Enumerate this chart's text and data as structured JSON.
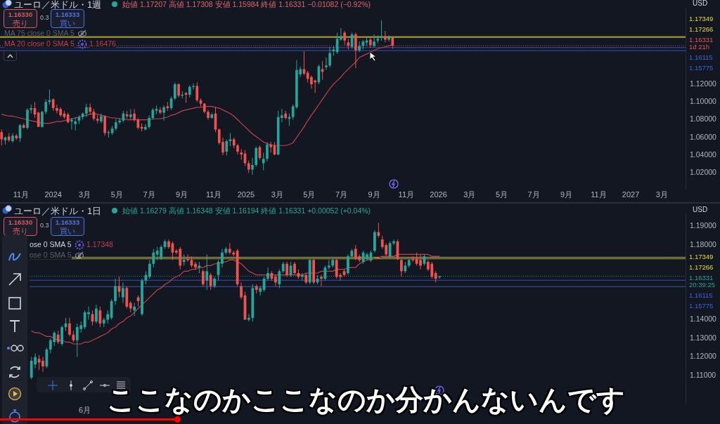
{
  "chart_data": [
    {
      "type": "candlestick",
      "title": "ユーロ／米ドル・1週",
      "subtitle": "始値 1.17207 高値 1.17308 安値 1.15984 終値 1.16331 −0.01082 (−0.92%)",
      "x": [
        "2023-09-25",
        "2023-10-02",
        "2023-10-09",
        "2023-10-16",
        "2023-10-23",
        "2023-10-30",
        "2023-11-06",
        "2023-11-13",
        "2023-11-20",
        "2023-11-27",
        "2023-12-04",
        "2023-12-11",
        "2023-12-18",
        "2023-12-25",
        "2024-01-01",
        "2024-01-08",
        "2024-01-15",
        "2024-01-22",
        "2024-01-29",
        "2024-02-05",
        "2024-02-12",
        "2024-02-19",
        "2024-02-26",
        "2024-03-04",
        "2024-03-11",
        "2024-03-18",
        "2024-03-25",
        "2024-04-01",
        "2024-04-08",
        "2024-04-15",
        "2024-04-22",
        "2024-04-29",
        "2024-05-06",
        "2024-05-13",
        "2024-05-20",
        "2024-05-27",
        "2024-06-03",
        "2024-06-10",
        "2024-06-17",
        "2024-06-24",
        "2024-07-01",
        "2024-07-08",
        "2024-07-15",
        "2024-07-22",
        "2024-07-29",
        "2024-08-05",
        "2024-08-12",
        "2024-08-19",
        "2024-08-26",
        "2024-09-02",
        "2024-09-09",
        "2024-09-16",
        "2024-09-23",
        "2024-09-30",
        "2024-10-07",
        "2024-10-14",
        "2024-10-21",
        "2024-10-28",
        "2024-11-04",
        "2024-11-11",
        "2024-11-18",
        "2024-11-25",
        "2024-12-02",
        "2024-12-09",
        "2024-12-16",
        "2024-12-23",
        "2024-12-30",
        "2025-01-06",
        "2025-01-13",
        "2025-01-20",
        "2025-01-27",
        "2025-02-03",
        "2025-02-10",
        "2025-02-17",
        "2025-02-24",
        "2025-03-03",
        "2025-03-10",
        "2025-03-17",
        "2025-03-24",
        "2025-03-31",
        "2025-04-07",
        "2025-04-14",
        "2025-04-21",
        "2025-04-28",
        "2025-05-05",
        "2025-05-12",
        "2025-05-19",
        "2025-05-26",
        "2025-06-02",
        "2025-06-09",
        "2025-06-16",
        "2025-06-23",
        "2025-06-30",
        "2025-07-07",
        "2025-07-14",
        "2025-07-21",
        "2025-07-28",
        "2025-08-04",
        "2025-08-11",
        "2025-08-18",
        "2025-08-25",
        "2025-09-01",
        "2025-09-08",
        "2025-09-15",
        "2025-09-22",
        "2025-09-29",
        "2025-10-06"
      ],
      "ohlc": [
        [
          1.066,
          1.069,
          1.051,
          1.058
        ],
        [
          1.057,
          1.061,
          1.052,
          1.06
        ],
        [
          1.061,
          1.065,
          1.055,
          1.057
        ],
        [
          1.056,
          1.065,
          1.054,
          1.062
        ],
        [
          1.062,
          1.064,
          1.057,
          1.059
        ],
        [
          1.059,
          1.075,
          1.055,
          1.074
        ],
        [
          1.074,
          1.076,
          1.07,
          1.071
        ],
        [
          1.071,
          1.093,
          1.069,
          1.091
        ],
        [
          1.091,
          1.097,
          1.087,
          1.093
        ],
        [
          1.093,
          1.1,
          1.082,
          1.086
        ],
        [
          1.088,
          1.089,
          1.072,
          1.072
        ],
        [
          1.072,
          1.09,
          1.071,
          1.089
        ],
        [
          1.089,
          1.103,
          1.086,
          1.1
        ],
        [
          1.1,
          1.114,
          1.097,
          1.102
        ],
        [
          1.103,
          1.104,
          1.09,
          1.093
        ],
        [
          1.093,
          1.097,
          1.087,
          1.09
        ],
        [
          1.092,
          1.094,
          1.083,
          1.085
        ],
        [
          1.087,
          1.09,
          1.081,
          1.083
        ],
        [
          1.086,
          1.088,
          1.076,
          1.077
        ],
        [
          1.078,
          1.082,
          1.069,
          1.08
        ],
        [
          1.075,
          1.083,
          1.068,
          1.078
        ],
        [
          1.079,
          1.085,
          1.075,
          1.083
        ],
        [
          1.083,
          1.088,
          1.08,
          1.087
        ],
        [
          1.087,
          1.098,
          1.083,
          1.094
        ],
        [
          1.094,
          1.098,
          1.086,
          1.089
        ],
        [
          1.089,
          1.092,
          1.079,
          1.081
        ],
        [
          1.081,
          1.085,
          1.076,
          1.079
        ],
        [
          1.078,
          1.087,
          1.076,
          1.084
        ],
        [
          1.084,
          1.085,
          1.062,
          1.065
        ],
        [
          1.065,
          1.068,
          1.06,
          1.066
        ],
        [
          1.065,
          1.073,
          1.063,
          1.07
        ],
        [
          1.07,
          1.081,
          1.068,
          1.077
        ],
        [
          1.077,
          1.082,
          1.075,
          1.079
        ],
        [
          1.079,
          1.09,
          1.077,
          1.087
        ],
        [
          1.086,
          1.09,
          1.081,
          1.084
        ],
        [
          1.083,
          1.092,
          1.08,
          1.086
        ],
        [
          1.087,
          1.092,
          1.078,
          1.08
        ],
        [
          1.08,
          1.082,
          1.069,
          1.071
        ],
        [
          1.072,
          1.076,
          1.067,
          1.07
        ],
        [
          1.069,
          1.075,
          1.068,
          1.072
        ],
        [
          1.072,
          1.085,
          1.07,
          1.082
        ],
        [
          1.082,
          1.093,
          1.08,
          1.091
        ],
        [
          1.09,
          1.096,
          1.086,
          1.092
        ],
        [
          1.091,
          1.094,
          1.086,
          1.088
        ],
        [
          1.088,
          1.096,
          1.079,
          1.094
        ],
        [
          1.095,
          1.1,
          1.09,
          1.093
        ],
        [
          1.093,
          1.106,
          1.091,
          1.104
        ],
        [
          1.104,
          1.122,
          1.102,
          1.12
        ],
        [
          1.12,
          1.121,
          1.105,
          1.107
        ],
        [
          1.107,
          1.112,
          1.104,
          1.108
        ],
        [
          1.11,
          1.111,
          1.099,
          1.108
        ],
        [
          1.108,
          1.119,
          1.105,
          1.117
        ],
        [
          1.117,
          1.121,
          1.114,
          1.118
        ],
        [
          1.118,
          1.122,
          1.1,
          1.102
        ],
        [
          1.102,
          1.104,
          1.095,
          1.098
        ],
        [
          1.098,
          1.099,
          1.087,
          1.089
        ],
        [
          1.089,
          1.091,
          1.08,
          1.082
        ],
        [
          1.082,
          1.088,
          1.081,
          1.086
        ],
        [
          1.087,
          1.094,
          1.066,
          1.069
        ],
        [
          1.069,
          1.07,
          1.052,
          1.054
        ],
        [
          1.055,
          1.06,
          1.04,
          1.043
        ],
        [
          1.044,
          1.058,
          1.04,
          1.056
        ],
        [
          1.056,
          1.065,
          1.05,
          1.058
        ],
        [
          1.058,
          1.06,
          1.048,
          1.051
        ],
        [
          1.051,
          1.053,
          1.041,
          1.044
        ],
        [
          1.043,
          1.047,
          1.035,
          1.041
        ],
        [
          1.042,
          1.046,
          1.028,
          1.031
        ],
        [
          1.031,
          1.034,
          1.02,
          1.024
        ],
        [
          1.024,
          1.037,
          1.018,
          1.029
        ],
        [
          1.029,
          1.05,
          1.027,
          1.048
        ],
        [
          1.049,
          1.051,
          1.035,
          1.037
        ],
        [
          1.031,
          1.043,
          1.023,
          1.036
        ],
        [
          1.036,
          1.055,
          1.033,
          1.052
        ],
        [
          1.052,
          1.055,
          1.043,
          1.049
        ],
        [
          1.051,
          1.055,
          1.04,
          1.041
        ],
        [
          1.041,
          1.09,
          1.04,
          1.083
        ],
        [
          1.082,
          1.092,
          1.077,
          1.085
        ],
        [
          1.087,
          1.09,
          1.08,
          1.082
        ],
        [
          1.081,
          1.087,
          1.073,
          1.083
        ],
        [
          1.083,
          1.097,
          1.08,
          1.095
        ],
        [
          1.094,
          1.147,
          1.092,
          1.136
        ],
        [
          1.131,
          1.14,
          1.128,
          1.137
        ],
        [
          1.137,
          1.157,
          1.13,
          1.132
        ],
        [
          1.133,
          1.135,
          1.122,
          1.126
        ],
        [
          1.128,
          1.13,
          1.115,
          1.12
        ],
        [
          1.124,
          1.125,
          1.11,
          1.122
        ],
        [
          1.122,
          1.142,
          1.12,
          1.14
        ],
        [
          1.137,
          1.146,
          1.125,
          1.134
        ],
        [
          1.139,
          1.15,
          1.136,
          1.141
        ],
        [
          1.141,
          1.162,
          1.139,
          1.155
        ],
        [
          1.157,
          1.163,
          1.152,
          1.159
        ],
        [
          1.156,
          1.178,
          1.154,
          1.171
        ],
        [
          1.17,
          1.183,
          1.169,
          1.174
        ],
        [
          1.178,
          1.18,
          1.164,
          1.169
        ],
        [
          1.167,
          1.171,
          1.159,
          1.163
        ],
        [
          1.162,
          1.178,
          1.16,
          1.176
        ],
        [
          1.176,
          1.178,
          1.138,
          1.158
        ],
        [
          1.158,
          1.168,
          1.156,
          1.163
        ],
        [
          1.163,
          1.17,
          1.159,
          1.168
        ],
        [
          1.167,
          1.172,
          1.163,
          1.169
        ],
        [
          1.17,
          1.173,
          1.161,
          1.164
        ],
        [
          1.163,
          1.176,
          1.161,
          1.168
        ],
        [
          1.169,
          1.175,
          1.166,
          1.171
        ],
        [
          1.172,
          1.192,
          1.169,
          1.174
        ],
        [
          1.174,
          1.18,
          1.167,
          1.17
        ],
        [
          1.17,
          1.175,
          1.168,
          1.172
        ],
        [
          1.17207,
          1.17308,
          1.15984,
          1.16331
        ]
      ],
      "series": [
        {
          "type": "line",
          "name": "MA 20 close 0 SMA 5",
          "color": "#c2404c",
          "values": [
            1.086,
            1.085,
            1.084,
            1.084,
            1.083,
            1.082,
            1.081,
            1.08,
            1.079,
            1.078,
            1.077,
            1.076,
            1.076,
            1.076,
            1.077,
            1.078,
            1.078,
            1.079,
            1.08,
            1.081,
            1.082,
            1.083,
            1.084,
            1.085,
            1.086,
            1.087,
            1.086,
            1.085,
            1.084,
            1.083,
            1.082,
            1.082,
            1.081,
            1.081,
            1.08,
            1.08,
            1.08,
            1.08,
            1.08,
            1.08,
            1.08,
            1.081,
            1.081,
            1.081,
            1.082,
            1.083,
            1.085,
            1.086,
            1.088,
            1.09,
            1.091,
            1.092,
            1.093,
            1.094,
            1.094,
            1.095,
            1.095,
            1.095,
            1.094,
            1.093,
            1.091,
            1.089,
            1.087,
            1.084,
            1.08,
            1.076,
            1.072,
            1.068,
            1.064,
            1.061,
            1.058,
            1.055,
            1.053,
            1.052,
            1.051,
            1.051,
            1.051,
            1.051,
            1.052,
            1.054,
            1.06,
            1.066,
            1.072,
            1.079,
            1.085,
            1.091,
            1.097,
            1.103,
            1.109,
            1.115,
            1.12,
            1.124,
            1.128,
            1.133,
            1.137,
            1.141,
            1.145,
            1.15,
            1.152,
            1.154,
            1.156,
            1.158,
            1.16,
            1.161,
            1.162,
            1.163,
            1.165
          ]
        }
      ],
      "xlim": [
        "2023-09-22",
        "2027-04-15"
      ],
      "xticks": [
        {
          "value": "2023-11-01",
          "label": "11月"
        },
        {
          "value": "2024-01-01",
          "label": "2024"
        },
        {
          "value": "2024-03-01",
          "label": "3月"
        },
        {
          "value": "2024-05-01",
          "label": "5月"
        },
        {
          "value": "2024-07-01",
          "label": "7月"
        },
        {
          "value": "2024-09-01",
          "label": "9月"
        },
        {
          "value": "2024-11-01",
          "label": "11月"
        },
        {
          "value": "2025-01-01",
          "label": "2025"
        },
        {
          "value": "2025-03-01",
          "label": "3月"
        },
        {
          "value": "2025-05-01",
          "label": "5月"
        },
        {
          "value": "2025-07-01",
          "label": "7月"
        },
        {
          "value": "2025-09-01",
          "label": "9月"
        },
        {
          "value": "2025-11-01",
          "label": "11月"
        },
        {
          "value": "2026-01-01",
          "label": "2026"
        },
        {
          "value": "2026-03-01",
          "label": "3月"
        },
        {
          "value": "2026-05-01",
          "label": "5月"
        },
        {
          "value": "2026-07-01",
          "label": "7月"
        },
        {
          "value": "2026-09-01",
          "label": "9月"
        },
        {
          "value": "2026-11-01",
          "label": "11月"
        },
        {
          "value": "2027-01-01",
          "label": "2027"
        },
        {
          "value": "2027-03-01",
          "label": "3月"
        }
      ],
      "ylim": [
        1.003,
        1.205
      ],
      "yticks": [
        {
          "value": 1.02,
          "label": "1.02000"
        },
        {
          "value": 1.04,
          "label": "1.04000"
        },
        {
          "value": 1.06,
          "label": "1.06000"
        },
        {
          "value": 1.08,
          "label": "1.08000"
        },
        {
          "value": 1.1,
          "label": "1.10000"
        },
        {
          "value": 1.12,
          "label": "1.12000"
        }
      ],
      "ref_lines": [
        {
          "axis": "y",
          "value": 1.17349,
          "label": "1.17349",
          "color": "#e8dc3a"
        },
        {
          "axis": "y",
          "value": 1.17266,
          "label": "1.17266",
          "color": "#e8dc3a"
        },
        {
          "axis": "y",
          "value": 1.16331,
          "label": "1.16331\n1d 21h",
          "color": "#ef5350",
          "line_style": "dotted"
        },
        {
          "axis": "y",
          "value": 1.16115,
          "label": "1.16115",
          "color": "#3f63d8"
        },
        {
          "axis": "y",
          "value": 1.15775,
          "label": "1.15775",
          "color": "#3f63d8"
        }
      ],
      "legend": "top left",
      "annotations": [
        "1.16330",
        "売り",
        "0.3",
        "1.16333",
        "買い",
        "MA 75 close 0 SMA 5",
        "1.16476",
        "USD"
      ]
    },
    {
      "type": "candlestick",
      "title": "ユーロ／米ドル・1日",
      "subtitle": "始値 1.16279 高値 1.16348 安値 1.16194 終値 1.16331 +0.00052 (+0.04%)",
      "categories": [
        null,
        null,
        null,
        null,
        null,
        null,
        null,
        null,
        null,
        null,
        null,
        null,
        null,
        null,
        "6月",
        null,
        null,
        null,
        null,
        null,
        null,
        null,
        null,
        null,
        null,
        null,
        null,
        null,
        null,
        null,
        null,
        null,
        null,
        null,
        null,
        null,
        null,
        null,
        null,
        null,
        null,
        null,
        null,
        null,
        null,
        null,
        null,
        null,
        null,
        null,
        null,
        null,
        null,
        null,
        null,
        null,
        null,
        null,
        null,
        null,
        null,
        null,
        null,
        null,
        null,
        null,
        null,
        null,
        null,
        null,
        null,
        null,
        null,
        null,
        null,
        null,
        null,
        null,
        null,
        null,
        null,
        null,
        null,
        null,
        null,
        null,
        null,
        null,
        null,
        null,
        null,
        null,
        null,
        null,
        null,
        null,
        null,
        null,
        null,
        null,
        null,
        null,
        null,
        null,
        null,
        null,
        null,
        null,
        null,
        null,
        null,
        null,
        null,
        null,
        null,
        null,
        null,
        null,
        null,
        null,
        null,
        null,
        null,
        null,
        null,
        null,
        null,
        null,
        null,
        null,
        null,
        null,
        null,
        null,
        null,
        null,
        null,
        null,
        null,
        null,
        null,
        null,
        null,
        null,
        null,
        null,
        null,
        null,
        null,
        null,
        null,
        null,
        null,
        null,
        null,
        null,
        null,
        null,
        null,
        null,
        null,
        null,
        null,
        null,
        null,
        null,
        null,
        null,
        null,
        null,
        null,
        null
      ],
      "ohlc": [
        [
          1.109,
          1.12,
          1.108,
          1.118
        ],
        [
          1.116,
          1.122,
          1.114,
          1.12
        ],
        [
          1.119,
          1.121,
          1.113,
          1.117
        ],
        [
          1.118,
          1.12,
          1.112,
          1.115
        ],
        [
          1.115,
          1.125,
          1.114,
          1.124
        ],
        [
          1.124,
          1.13,
          1.122,
          1.129
        ],
        [
          1.128,
          1.134,
          1.126,
          1.133
        ],
        [
          1.132,
          1.134,
          1.127,
          1.128
        ],
        [
          1.127,
          1.137,
          1.126,
          1.136
        ],
        [
          1.136,
          1.141,
          1.134,
          1.138
        ],
        [
          1.138,
          1.141,
          1.131,
          1.132
        ],
        [
          1.132,
          1.134,
          1.128,
          1.129
        ],
        [
          1.129,
          1.138,
          1.12,
          1.136
        ],
        [
          1.135,
          1.139,
          1.133,
          1.137
        ],
        [
          1.136,
          1.145,
          1.135,
          1.144
        ],
        [
          1.143,
          1.147,
          1.14,
          1.144
        ],
        [
          1.143,
          1.145,
          1.137,
          1.139
        ],
        [
          1.139,
          1.148,
          1.138,
          1.146
        ],
        [
          1.145,
          1.147,
          1.136,
          1.138
        ],
        [
          1.138,
          1.141,
          1.136,
          1.14
        ],
        [
          1.14,
          1.145,
          1.138,
          1.143
        ],
        [
          1.141,
          1.151,
          1.14,
          1.15
        ],
        [
          1.15,
          1.162,
          1.148,
          1.158
        ],
        [
          1.158,
          1.163,
          1.152,
          1.155
        ],
        [
          1.152,
          1.16,
          1.149,
          1.157
        ],
        [
          1.157,
          1.158,
          1.146,
          1.147
        ],
        [
          1.149,
          1.15,
          1.144,
          1.146
        ],
        [
          1.145,
          1.149,
          1.142,
          1.147
        ],
        [
          1.152,
          1.153,
          1.147,
          1.15
        ],
        [
          1.143,
          1.162,
          1.142,
          1.161
        ],
        [
          1.161,
          1.166,
          1.159,
          1.164
        ],
        [
          1.163,
          1.172,
          1.162,
          1.17
        ],
        [
          1.17,
          1.178,
          1.168,
          1.176
        ],
        [
          1.175,
          1.179,
          1.172,
          1.177
        ],
        [
          1.173,
          1.18,
          1.172,
          1.179
        ],
        [
          1.179,
          1.183,
          1.178,
          1.182
        ],
        [
          1.182,
          1.183,
          1.178,
          1.179
        ],
        [
          1.181,
          1.182,
          1.172,
          1.176
        ],
        [
          1.177,
          1.178,
          1.175,
          1.176
        ],
        [
          1.178,
          1.179,
          1.167,
          1.169
        ],
        [
          1.171,
          1.175,
          1.169,
          1.172
        ],
        [
          1.173,
          1.175,
          1.171,
          1.172
        ],
        [
          1.172,
          1.174,
          1.168,
          1.169
        ],
        [
          1.17,
          1.171,
          1.167,
          1.168
        ],
        [
          1.168,
          1.171,
          1.165,
          1.169
        ],
        [
          1.166,
          1.167,
          1.158,
          1.159
        ],
        [
          1.161,
          1.175,
          1.156,
          1.166
        ],
        [
          1.164,
          1.165,
          1.156,
          1.158
        ],
        [
          1.158,
          1.163,
          1.157,
          1.162
        ],
        [
          1.164,
          1.172,
          1.161,
          1.171
        ],
        [
          1.17,
          1.178,
          1.168,
          1.176
        ],
        [
          1.176,
          1.179,
          1.175,
          1.178
        ],
        [
          1.178,
          1.181,
          1.175,
          1.176
        ],
        [
          1.176,
          1.177,
          1.174,
          1.175
        ],
        [
          1.177,
          1.178,
          1.158,
          1.159
        ],
        [
          1.158,
          1.16,
          1.151,
          1.152
        ],
        [
          1.153,
          1.155,
          1.14,
          1.14
        ],
        [
          1.14,
          1.143,
          1.139,
          1.141
        ],
        [
          1.141,
          1.159,
          1.139,
          1.157
        ],
        [
          1.158,
          1.159,
          1.154,
          1.156
        ],
        [
          1.155,
          1.158,
          1.153,
          1.157
        ],
        [
          1.156,
          1.163,
          1.155,
          1.162
        ],
        [
          1.162,
          1.168,
          1.161,
          1.165
        ],
        [
          1.165,
          1.166,
          1.161,
          1.162
        ],
        [
          1.163,
          1.164,
          1.158,
          1.16
        ],
        [
          1.159,
          1.167,
          1.157,
          1.166
        ],
        [
          1.166,
          1.171,
          1.165,
          1.17
        ],
        [
          1.17,
          1.171,
          1.163,
          1.164
        ],
        [
          1.164,
          1.171,
          1.163,
          1.169
        ],
        [
          1.17,
          1.171,
          1.164,
          1.165
        ],
        [
          1.165,
          1.167,
          1.162,
          1.163
        ],
        [
          1.163,
          1.165,
          1.161,
          1.164
        ],
        [
          1.164,
          1.165,
          1.159,
          1.16
        ],
        [
          1.16,
          1.173,
          1.159,
          1.172
        ],
        [
          1.172,
          1.173,
          1.159,
          1.16
        ],
        [
          1.16,
          1.164,
          1.159,
          1.162
        ],
        [
          1.163,
          1.164,
          1.158,
          1.162
        ],
        [
          1.162,
          1.169,
          1.161,
          1.168
        ],
        [
          1.168,
          1.172,
          1.167,
          1.169
        ],
        [
          1.169,
          1.173,
          1.168,
          1.172
        ],
        [
          1.172,
          1.173,
          1.162,
          1.163
        ],
        [
          1.164,
          1.165,
          1.161,
          1.163
        ],
        [
          1.166,
          1.167,
          1.163,
          1.164
        ],
        [
          1.165,
          1.175,
          1.164,
          1.174
        ],
        [
          1.174,
          1.178,
          1.173,
          1.177
        ],
        [
          1.178,
          1.18,
          1.172,
          1.173
        ],
        [
          1.174,
          1.175,
          1.171,
          1.172
        ],
        [
          1.171,
          1.177,
          1.17,
          1.176
        ],
        [
          1.173,
          1.176,
          1.172,
          1.175
        ],
        [
          1.172,
          1.177,
          1.171,
          1.176
        ],
        [
          1.177,
          1.188,
          1.176,
          1.187
        ],
        [
          1.187,
          1.192,
          1.184,
          1.185
        ],
        [
          1.183,
          1.185,
          1.178,
          1.179
        ],
        [
          1.18,
          1.181,
          1.174,
          1.175
        ],
        [
          1.174,
          1.182,
          1.173,
          1.181
        ],
        [
          1.181,
          1.183,
          1.18,
          1.182
        ],
        [
          1.182,
          1.183,
          1.172,
          1.173
        ],
        [
          1.172,
          1.173,
          1.163,
          1.166
        ],
        [
          1.166,
          1.171,
          1.165,
          1.169
        ],
        [
          1.169,
          1.173,
          1.168,
          1.172
        ],
        [
          1.173,
          1.174,
          1.171,
          1.172
        ],
        [
          1.173,
          1.176,
          1.169,
          1.17
        ],
        [
          1.172,
          1.175,
          1.167,
          1.169
        ],
        [
          1.17,
          1.175,
          1.169,
          1.174
        ],
        [
          1.171,
          1.172,
          1.166,
          1.167
        ],
        [
          1.17,
          1.171,
          1.162,
          1.163
        ],
        [
          1.165,
          1.166,
          1.16,
          1.162
        ],
        [
          1.16279,
          1.16348,
          1.16194,
          1.16331
        ],
        null,
        null,
        null,
        null,
        null,
        null,
        null,
        null,
        null,
        null,
        null,
        null,
        null,
        null,
        null,
        null,
        null,
        null,
        null,
        null,
        null,
        null,
        null,
        null,
        null,
        null,
        null,
        null,
        null,
        null,
        null,
        null,
        null,
        null,
        null,
        null,
        null,
        null,
        null,
        null,
        null,
        null,
        null,
        null,
        null,
        null,
        null,
        null,
        null,
        null,
        null,
        null,
        null,
        null,
        null,
        null,
        null,
        null,
        null,
        null,
        null,
        null,
        null,
        null
      ],
      "series": [
        {
          "type": "line",
          "color": "#c2404c",
          "values": [
            1.134,
            1.133,
            1.133,
            1.132,
            1.131,
            1.131,
            1.13,
            1.129,
            1.129,
            1.128,
            1.128,
            1.127,
            1.127,
            1.127,
            1.128,
            1.128,
            1.129,
            1.13,
            1.131,
            1.132,
            1.133,
            1.135,
            1.136,
            1.138,
            1.139,
            1.141,
            1.142,
            1.144,
            1.146,
            1.148,
            1.15,
            1.152,
            1.154,
            1.156,
            1.157,
            1.159,
            1.16,
            1.162,
            1.163,
            1.164,
            1.166,
            1.166,
            1.167,
            1.167,
            1.168,
            1.168,
            1.169,
            1.169,
            1.17,
            1.17,
            1.171,
            1.171,
            1.172,
            1.172,
            1.171,
            1.17,
            1.168,
            1.166,
            1.165,
            1.164,
            1.164,
            1.164,
            1.164,
            1.164,
            1.164,
            1.164,
            1.164,
            1.164,
            1.164,
            1.164,
            1.164,
            1.164,
            1.165,
            1.165,
            1.165,
            1.165,
            1.166,
            1.166,
            1.166,
            1.166,
            1.167,
            1.167,
            1.167,
            1.168,
            1.168,
            1.168,
            1.17,
            1.171,
            1.172,
            1.172,
            1.173,
            1.173,
            1.174,
            1.174,
            1.174,
            1.174,
            1.175,
            1.175,
            1.175,
            1.175,
            1.175,
            1.175,
            1.175,
            1.175,
            1.175,
            1.174,
            1.174,
            1.174,
            null,
            null,
            null,
            null,
            null,
            null,
            null,
            null,
            null,
            null,
            null,
            null,
            null,
            null,
            null,
            null,
            null,
            null,
            null,
            null,
            null,
            null,
            null,
            null,
            null,
            null,
            null,
            null,
            null,
            null,
            null,
            null,
            null,
            null,
            null,
            null,
            null,
            null,
            null,
            null,
            null,
            null,
            null,
            null,
            null,
            null,
            null,
            null,
            null,
            null,
            null,
            null,
            null,
            null,
            null,
            null,
            null,
            null,
            null,
            null,
            null,
            null,
            null,
            null
          ]
        }
      ],
      "ylim": [
        1.095,
        1.197
      ],
      "yticks": [
        {
          "value": 1.11,
          "label": "1.11000"
        },
        {
          "value": 1.12,
          "label": "1.12000"
        },
        {
          "value": 1.13,
          "label": "1.13000"
        },
        {
          "value": 1.14,
          "label": "1.14000"
        },
        {
          "value": 1.18,
          "label": "1.18000"
        },
        {
          "value": 1.19,
          "label": "1.19000"
        }
      ],
      "ref_lines": [
        {
          "axis": "y",
          "value": 1.17349,
          "label": "1.17349",
          "color": "#e8dc3a"
        },
        {
          "axis": "y",
          "value": 1.17266,
          "label": "1.17266",
          "color": "#e8dc3a"
        },
        {
          "axis": "y",
          "value": 1.16331,
          "label": "1.16331\n20:39:25",
          "color": "#26a69a",
          "line_style": "dotted"
        },
        {
          "axis": "y",
          "value": 1.16115,
          "label": "1.16115",
          "color": "#3f63d8"
        },
        {
          "axis": "y",
          "value": 1.15775,
          "label": "1.15775",
          "color": "#3f63d8"
        }
      ],
      "annotations": [
        "1.16330",
        "売り",
        "0.3",
        "1.16333",
        "買い",
        "ose 0 SMA 5",
        "1.17348",
        "ose 0 SMA 5",
        "USD",
        "ここなのかここなのか分かんないんです"
      ]
    }
  ]
}
